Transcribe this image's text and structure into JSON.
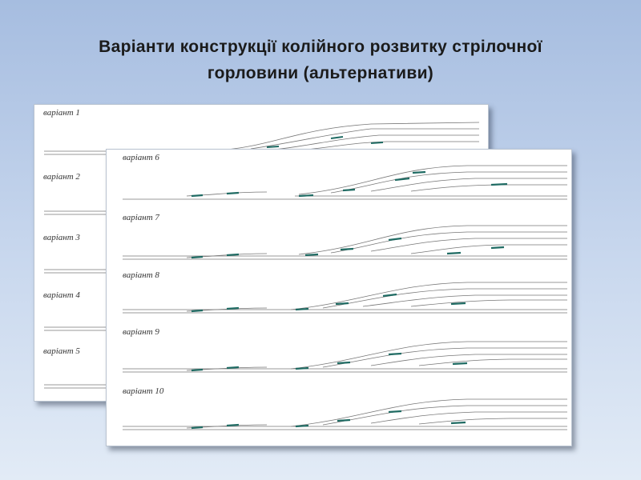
{
  "title": {
    "line1": "Варіанти конструкції колійного розвитку стрілочної",
    "line2": "горловини (альтернативи)"
  },
  "back_panel": {
    "variants": [
      "варіант 1",
      "варіант 2",
      "варіант 3",
      "варіант 4",
      "варіант 5"
    ]
  },
  "front_panel": {
    "variants": [
      "варіант 6",
      "варіант 7",
      "варіант 8",
      "варіант 9",
      "варіант 10"
    ]
  },
  "colors": {
    "background_top": "#a6bde0",
    "panel": "#ffffff",
    "track": "#777777",
    "switch_marker": "#1f6b63"
  }
}
